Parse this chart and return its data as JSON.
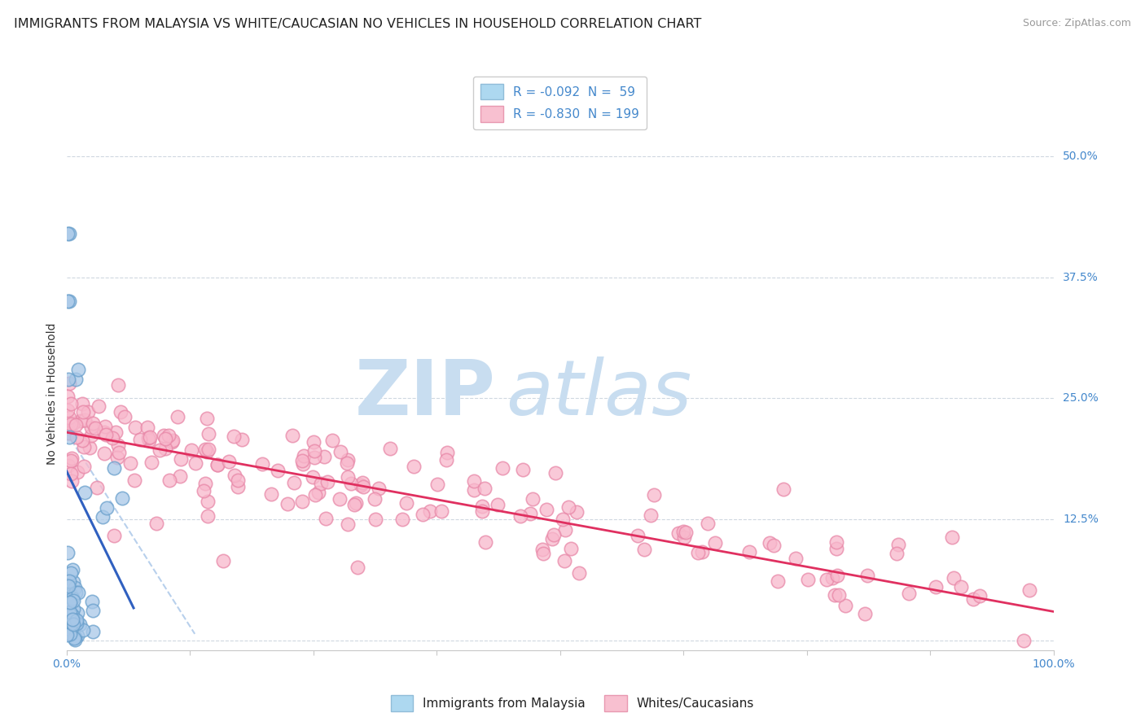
{
  "title": "IMMIGRANTS FROM MALAYSIA VS WHITE/CAUCASIAN NO VEHICLES IN HOUSEHOLD CORRELATION CHART",
  "source": "Source: ZipAtlas.com",
  "ylabel": "No Vehicles in Household",
  "legend_top": [
    {
      "label": "R = -0.092  N =  59",
      "facecolor": "#add8f0",
      "edgecolor": "#90bcd8"
    },
    {
      "label": "R = -0.830  N = 199",
      "facecolor": "#f8c0d0",
      "edgecolor": "#e898b0"
    }
  ],
  "legend_bottom": [
    {
      "label": "Immigrants from Malaysia",
      "facecolor": "#add8f0",
      "edgecolor": "#90bcd8"
    },
    {
      "label": "Whites/Caucasians",
      "facecolor": "#f8c0d0",
      "edgecolor": "#e898b0"
    }
  ],
  "xlim": [
    0.0,
    1.0
  ],
  "ylim": [
    -0.01,
    0.52
  ],
  "yticks": [
    0.0,
    0.125,
    0.25,
    0.375,
    0.5
  ],
  "ytick_right_labels": [
    "",
    "12.5%",
    "25.0%",
    "37.5%",
    "50.0%"
  ],
  "xtick_labels": [
    "0.0%",
    "",
    "",
    "",
    "",
    "",
    "",
    "",
    "100.0%"
  ],
  "background_color": "#ffffff",
  "blue_dot_facecolor": "#a8c8e8",
  "blue_dot_edgecolor": "#6aa0cc",
  "pink_dot_facecolor": "#f8b8cc",
  "pink_dot_edgecolor": "#e888a8",
  "blue_line_color": "#3060c0",
  "pink_line_color": "#e03060",
  "dash_line_color": "#b8d0ec",
  "right_label_color": "#4488cc",
  "tick_color": "#4488cc",
  "title_fontsize": 11.5,
  "source_fontsize": 9,
  "tick_fontsize": 10,
  "legend_fontsize": 11,
  "ylabel_fontsize": 10,
  "watermark_zip_color": "#c8ddf0",
  "watermark_atlas_color": "#c8ddf0"
}
